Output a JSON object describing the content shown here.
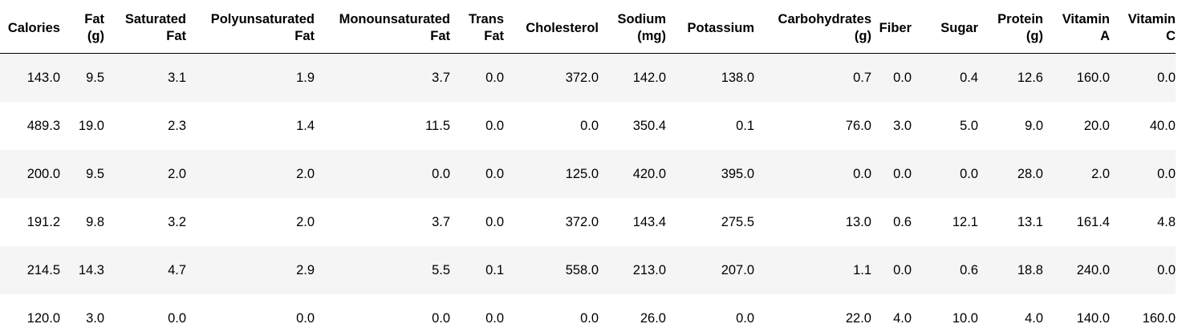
{
  "table": {
    "columns": [
      [
        "Calories"
      ],
      [
        "Fat",
        "(g)"
      ],
      [
        "Saturated",
        "Fat"
      ],
      [
        "Polyunsaturated",
        "Fat"
      ],
      [
        "Monounsaturated",
        "Fat"
      ],
      [
        "Trans",
        "Fat"
      ],
      [
        "Cholesterol"
      ],
      [
        "Sodium",
        "(mg)"
      ],
      [
        "Potassium"
      ],
      [
        "Carbohydrates",
        "(g)"
      ],
      [
        "Fiber"
      ],
      [
        "Sugar"
      ],
      [
        "Protein",
        "(g)"
      ],
      [
        "Vitamin",
        "A"
      ],
      [
        "Vitamin",
        "C"
      ]
    ],
    "rows": [
      [
        "143.0",
        "9.5",
        "3.1",
        "1.9",
        "3.7",
        "0.0",
        "372.0",
        "142.0",
        "138.0",
        "0.7",
        "0.0",
        "0.4",
        "12.6",
        "160.0",
        "0.0"
      ],
      [
        "489.3",
        "19.0",
        "2.3",
        "1.4",
        "11.5",
        "0.0",
        "0.0",
        "350.4",
        "0.1",
        "76.0",
        "3.0",
        "5.0",
        "9.0",
        "20.0",
        "40.0"
      ],
      [
        "200.0",
        "9.5",
        "2.0",
        "2.0",
        "0.0",
        "0.0",
        "125.0",
        "420.0",
        "395.0",
        "0.0",
        "0.0",
        "0.0",
        "28.0",
        "2.0",
        "0.0"
      ],
      [
        "191.2",
        "9.8",
        "3.2",
        "2.0",
        "3.7",
        "0.0",
        "372.0",
        "143.4",
        "275.5",
        "13.0",
        "0.6",
        "12.1",
        "13.1",
        "161.4",
        "4.8"
      ],
      [
        "214.5",
        "14.3",
        "4.7",
        "2.9",
        "5.5",
        "0.1",
        "558.0",
        "213.0",
        "207.0",
        "1.1",
        "0.0",
        "0.6",
        "18.8",
        "240.0",
        "0.0"
      ],
      [
        "120.0",
        "3.0",
        "0.0",
        "0.0",
        "0.0",
        "0.0",
        "0.0",
        "26.0",
        "0.0",
        "22.0",
        "4.0",
        "10.0",
        "4.0",
        "140.0",
        "160.0"
      ]
    ]
  }
}
